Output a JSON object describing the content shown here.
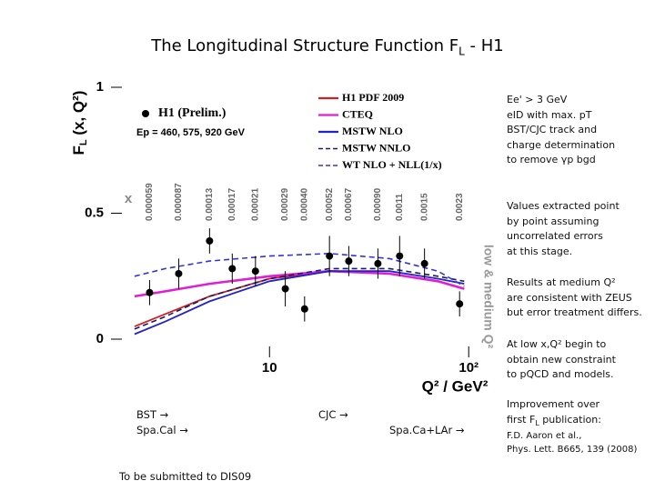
{
  "slide": {
    "title": [
      "The Longitudinal Structure Function F",
      "L",
      " - H1"
    ],
    "notes_top": [
      "Ee' > 3 GeV",
      "eID with max. pT",
      "BST/CJC track and",
      "charge determination",
      "to remove γp bgd"
    ],
    "notes_values": [
      "Values extracted point",
      "by point assuming",
      "uncorrelated errors",
      "at this stage."
    ],
    "notes_results": [
      "Results at medium Q²",
      "are consistent with ZEUS",
      "but error treatment differs."
    ],
    "notes_lowx": [
      "At low x,Q² begin to",
      "obtain new constraint",
      "to pQCD and models."
    ],
    "notes_improvement": [
      "Improvement over",
      "first F",
      "L",
      " publication:"
    ],
    "reference": [
      "F.D. Aaron et al.,",
      "Phys. Lett. B665, 139 (2008)"
    ],
    "bottom_labels": {
      "bst": "BST →",
      "spacal": "Spa.Cal →",
      "cjc": "CJC →",
      "spacal_lar": "Spa.Ca+LAr →"
    },
    "footer": "To be submitted to DIS09"
  },
  "chart_data": {
    "type": "line",
    "x_label": "Q² / GeV²",
    "y_label": [
      "F",
      "L",
      " (x, Q²)"
    ],
    "x_symbol": "x",
    "region_label": "low & medium Q²",
    "beam_energies": "Ep = 460, 575, 920 GeV",
    "x_log": true,
    "xlim": [
      1.6,
      112
    ],
    "ylim": [
      0,
      1
    ],
    "xticks": [
      10,
      {
        "value": 100,
        "label": "10²"
      }
    ],
    "yticks": [
      0,
      0.5,
      1
    ],
    "points": {
      "name": "H1 (Prelim.)",
      "color": "#000000",
      "x": [
        2.5,
        3.5,
        5,
        6.5,
        8.5,
        12,
        15,
        20,
        25,
        35,
        45,
        60,
        90
      ],
      "values": [
        0.185,
        0.26,
        0.39,
        0.28,
        0.27,
        0.2,
        0.12,
        0.33,
        0.31,
        0.3,
        0.33,
        0.3,
        0.14
      ],
      "errors": [
        0.05,
        0.06,
        0.05,
        0.06,
        0.06,
        0.07,
        0.05,
        0.08,
        0.06,
        0.06,
        0.08,
        0.06,
        0.05
      ],
      "bjorken_x": [
        "0.000059",
        "0.000087",
        "0.00013",
        "0.00017",
        "0.00021",
        "0.00029",
        "0.00040",
        "0.00052",
        "0.00067",
        "0.00090",
        "0.0011",
        "0.0015",
        "0.0023"
      ]
    },
    "x": [
      2.1,
      3,
      5,
      10,
      20,
      40,
      70,
      95
    ],
    "series": [
      {
        "name": "H1 PDF 2009",
        "color": "#cc2222",
        "dashed": false,
        "values": [
          0.05,
          0.1,
          0.17,
          0.24,
          0.27,
          0.26,
          0.23,
          0.2
        ]
      },
      {
        "name": "CTEQ",
        "color": "#e020d0",
        "dashed": false,
        "values": [
          0.17,
          0.19,
          0.22,
          0.25,
          0.27,
          0.26,
          0.23,
          0.2
        ]
      },
      {
        "name": "MSTW NLO",
        "color": "#2222cc",
        "dashed": false,
        "values": [
          0.02,
          0.07,
          0.15,
          0.23,
          0.27,
          0.27,
          0.24,
          0.22
        ]
      },
      {
        "name": "MSTW NNLO",
        "color": "#1a1a66",
        "dashed": true,
        "values": [
          0.04,
          0.09,
          0.17,
          0.24,
          0.28,
          0.28,
          0.25,
          0.23
        ]
      },
      {
        "name": "WT NLO + NLL(1/x)",
        "color": "#3333dd",
        "dashed": true,
        "values": [
          0.25,
          0.28,
          0.31,
          0.33,
          0.34,
          0.32,
          0.27,
          0.21
        ]
      }
    ]
  }
}
